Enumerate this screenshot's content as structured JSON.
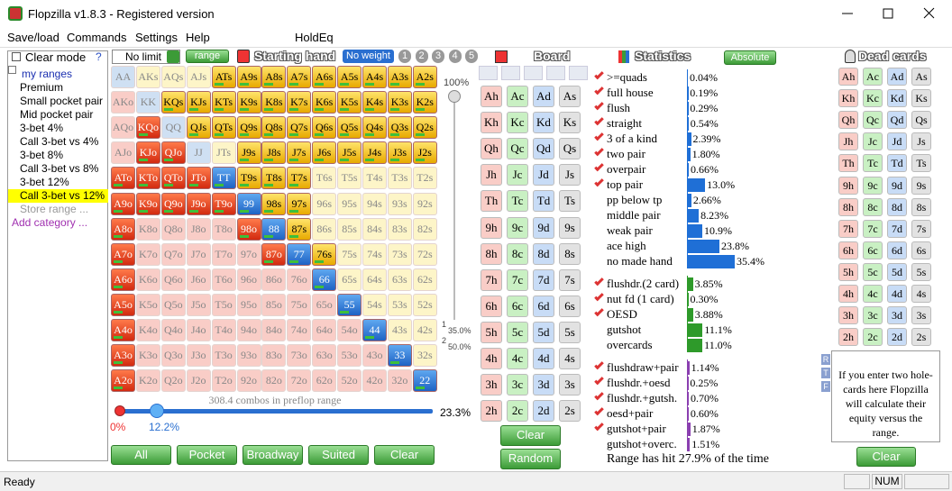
{
  "window": {
    "title": "Flopzilla v1.8.3 - Registered version"
  },
  "menu": [
    "Save/load",
    "Commands",
    "Settings",
    "Help",
    "HoldEq"
  ],
  "ranges": {
    "clear_mode": "Clear mode",
    "help": "?",
    "root": "my ranges",
    "items": [
      {
        "label": "Premium"
      },
      {
        "label": "Small pocket pair"
      },
      {
        "label": "Mid pocket pair"
      },
      {
        "label": "3-bet 4%"
      },
      {
        "label": "Call 3-bet vs 4%"
      },
      {
        "label": "3-bet 8%"
      },
      {
        "label": "Call 3-bet vs 8%"
      },
      {
        "label": "3-bet 12%"
      },
      {
        "label": "Call 3-bet vs 12%",
        "selected": true
      }
    ],
    "store": "Store range ...",
    "add": "Add category ..."
  },
  "toolbar": {
    "limit": "No limit",
    "range": "range",
    "starting_hand": "Starting hand",
    "weight": "No weight",
    "weight_slots": [
      "1",
      "2",
      "3",
      "4",
      "5"
    ]
  },
  "hand_grid": {
    "rows": [
      [
        "AA",
        "AKs",
        "AQs",
        "AJs",
        "ATs",
        "A9s",
        "A8s",
        "A7s",
        "A6s",
        "A5s",
        "A4s",
        "A3s",
        "A2s"
      ],
      [
        "AKo",
        "KK",
        "KQs",
        "KJs",
        "KTs",
        "K9s",
        "K8s",
        "K7s",
        "K6s",
        "K5s",
        "K4s",
        "K3s",
        "K2s"
      ],
      [
        "AQo",
        "KQo",
        "QQ",
        "QJs",
        "QTs",
        "Q9s",
        "Q8s",
        "Q7s",
        "Q6s",
        "Q5s",
        "Q4s",
        "Q3s",
        "Q2s"
      ],
      [
        "AJo",
        "KJo",
        "QJo",
        "JJ",
        "JTs",
        "J9s",
        "J8s",
        "J7s",
        "J6s",
        "J5s",
        "J4s",
        "J3s",
        "J2s"
      ],
      [
        "ATo",
        "KTo",
        "QTo",
        "JTo",
        "TT",
        "T9s",
        "T8s",
        "T7s",
        "T6s",
        "T5s",
        "T4s",
        "T3s",
        "T2s"
      ],
      [
        "A9o",
        "K9o",
        "Q9o",
        "J9o",
        "T9o",
        "99",
        "98s",
        "97s",
        "96s",
        "95s",
        "94s",
        "93s",
        "92s"
      ],
      [
        "A8o",
        "K8o",
        "Q8o",
        "J8o",
        "T8o",
        "98o",
        "88",
        "87s",
        "86s",
        "85s",
        "84s",
        "83s",
        "82s"
      ],
      [
        "A7o",
        "K7o",
        "Q7o",
        "J7o",
        "T7o",
        "97o",
        "87o",
        "77",
        "76s",
        "75s",
        "74s",
        "73s",
        "72s"
      ],
      [
        "A6o",
        "K6o",
        "Q6o",
        "J6o",
        "T6o",
        "96o",
        "86o",
        "76o",
        "66",
        "65s",
        "64s",
        "63s",
        "62s"
      ],
      [
        "A5o",
        "K5o",
        "Q5o",
        "J5o",
        "T5o",
        "95o",
        "85o",
        "75o",
        "65o",
        "55",
        "54s",
        "53s",
        "52s"
      ],
      [
        "A4o",
        "K4o",
        "Q4o",
        "J4o",
        "T4o",
        "94o",
        "84o",
        "74o",
        "64o",
        "54o",
        "44",
        "43s",
        "42s"
      ],
      [
        "A3o",
        "K3o",
        "Q3o",
        "J3o",
        "T3o",
        "93o",
        "83o",
        "73o",
        "63o",
        "53o",
        "43o",
        "33",
        "32s"
      ],
      [
        "A2o",
        "K2o",
        "Q2o",
        "J2o",
        "T2o",
        "92o",
        "82o",
        "72o",
        "62o",
        "52o",
        "42o",
        "32o",
        "22"
      ]
    ],
    "selected": [
      "0000111111111",
      "0011111111111",
      "0101111111111",
      "0110011111111",
      "1111111100000",
      "1111111100000",
      "1000011100000",
      "1000001110000",
      "1000000010000",
      "1000000001000",
      "1000000000100",
      "1000000000010",
      "1000000000001"
    ],
    "combos": "308.4 combos in preflop range",
    "slider_labels": [
      "0%",
      "12.2%",
      "23.3%"
    ],
    "vertical_labels": [
      "100%",
      "1",
      "35.0%",
      "2",
      "50.0%"
    ],
    "buttons": [
      "All",
      "Pocket",
      "Broadway",
      "Suited",
      "Clear"
    ]
  },
  "board": {
    "title": "Board",
    "cards": [
      [
        "Ah",
        "Ac",
        "Ad",
        "As"
      ],
      [
        "Kh",
        "Kc",
        "Kd",
        "Ks"
      ],
      [
        "Qh",
        "Qc",
        "Qd",
        "Qs"
      ],
      [
        "Jh",
        "Jc",
        "Jd",
        "Js"
      ],
      [
        "Th",
        "Tc",
        "Td",
        "Ts"
      ],
      [
        "9h",
        "9c",
        "9d",
        "9s"
      ],
      [
        "8h",
        "8c",
        "8d",
        "8s"
      ],
      [
        "7h",
        "7c",
        "7d",
        "7s"
      ],
      [
        "6h",
        "6c",
        "6d",
        "6s"
      ],
      [
        "5h",
        "5c",
        "5d",
        "5s"
      ],
      [
        "4h",
        "4c",
        "4d",
        "4s"
      ],
      [
        "3h",
        "3c",
        "3d",
        "3s"
      ],
      [
        "2h",
        "2c",
        "2d",
        "2s"
      ]
    ],
    "buttons": [
      "Clear",
      "Random"
    ]
  },
  "statistics": {
    "title": "Statistics",
    "mode": "Absolute",
    "xlim": [
      0,
      100
    ],
    "groups": [
      {
        "color": "#1f6fd6",
        "names": [
          ">=quads",
          "full house",
          "flush",
          "straight",
          "3 of a kind",
          "two pair",
          "overpair",
          "top pair",
          "pp below tp",
          "middle pair",
          "weak pair",
          "ace high",
          "no made hand"
        ],
        "values": [
          0.04,
          0.19,
          0.29,
          0.54,
          2.39,
          1.8,
          0.66,
          13.0,
          2.66,
          8.23,
          10.9,
          23.8,
          35.4
        ],
        "value_labels": [
          "0.04%",
          "0.19%",
          "0.29%",
          "0.54%",
          "2.39%",
          "1.80%",
          "0.66%",
          "13.0%",
          "2.66%",
          "8.23%",
          "10.9%",
          "23.8%",
          "35.4%"
        ],
        "checked": [
          true,
          true,
          true,
          true,
          true,
          true,
          true,
          true,
          false,
          false,
          false,
          false,
          false
        ]
      },
      {
        "color": "#2e9a2a",
        "names": [
          "flushdr.(2 card)",
          "nut fd (1 card)",
          "OESD",
          "gutshot",
          "overcards"
        ],
        "values": [
          3.85,
          0.3,
          3.88,
          11.1,
          11.0
        ],
        "value_labels": [
          "3.85%",
          "0.30%",
          "3.88%",
          "11.1%",
          "11.0%"
        ],
        "checked": [
          true,
          true,
          true,
          false,
          false
        ]
      },
      {
        "color": "#8a3fb0",
        "names": [
          "flushdraw+pair",
          "flushdr.+oesd",
          "flushdr.+gutsh.",
          "oesd+pair",
          "gutshot+pair",
          "gutshot+overc."
        ],
        "values": [
          1.14,
          0.25,
          0.7,
          0.6,
          1.87,
          1.51
        ],
        "value_labels": [
          "1.14%",
          "0.25%",
          "0.70%",
          "0.60%",
          "1.87%",
          "1.51%"
        ],
        "checked": [
          true,
          true,
          true,
          true,
          true,
          false
        ]
      }
    ],
    "summary": "Range has hit 27.9% of the time"
  },
  "dead_cards": {
    "title": "Dead cards",
    "cards": [
      [
        "Ah",
        "Ac",
        "Ad",
        "As"
      ],
      [
        "Kh",
        "Kc",
        "Kd",
        "Ks"
      ],
      [
        "Qh",
        "Qc",
        "Qd",
        "Qs"
      ],
      [
        "Jh",
        "Jc",
        "Jd",
        "Js"
      ],
      [
        "Th",
        "Tc",
        "Td",
        "Ts"
      ],
      [
        "9h",
        "9c",
        "9d",
        "9s"
      ],
      [
        "8h",
        "8c",
        "8d",
        "8s"
      ],
      [
        "7h",
        "7c",
        "7d",
        "7s"
      ],
      [
        "6h",
        "6c",
        "6d",
        "6s"
      ],
      [
        "5h",
        "5c",
        "5d",
        "5s"
      ],
      [
        "4h",
        "4c",
        "4d",
        "4s"
      ],
      [
        "3h",
        "3c",
        "3d",
        "3s"
      ],
      [
        "2h",
        "2c",
        "2d",
        "2s"
      ]
    ],
    "side_letters": [
      "R",
      "T",
      "F"
    ],
    "info": "If you enter two hole-cards here Flopzilla will calculate their equity versus the range.",
    "button": "Clear"
  },
  "status": {
    "text": "Ready",
    "num": "NUM"
  }
}
